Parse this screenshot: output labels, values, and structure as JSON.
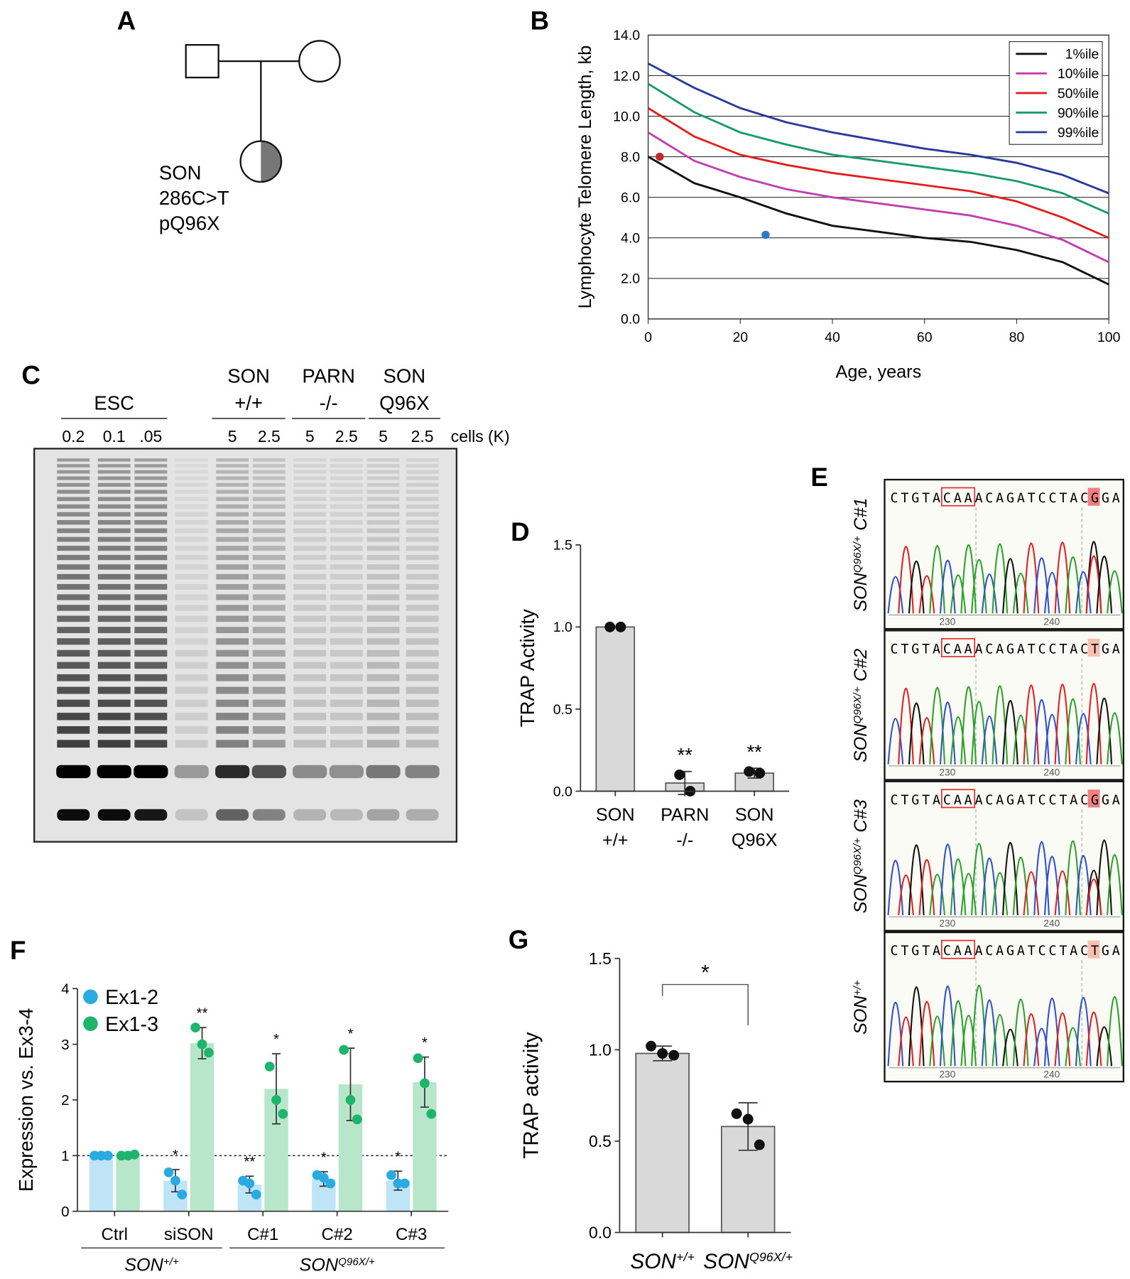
{
  "pedigree": {
    "panel": "A",
    "lines": [
      "SON",
      "286C>T",
      "pQ96X"
    ]
  },
  "gel": {
    "panel": "C",
    "groups": [
      [
        "ESC"
      ],
      [
        "SON",
        "+/+"
      ],
      [
        "PARN",
        "-/-"
      ],
      [
        "SON",
        "Q96X"
      ]
    ],
    "lanes": [
      "0.2",
      "0.1",
      ".05",
      "5",
      "2.5",
      "5",
      "2.5",
      "5",
      "2.5"
    ],
    "units": "cells (K)"
  },
  "sequencing": {
    "panel": "E",
    "positions": [
      "230",
      "240"
    ],
    "traces": [
      {
        "sequence": "CTGTACAAACAGATCCTACGGA",
        "label": {
          "text": "SON",
          "sup": "Q96X/+",
          "suffix": "C#1"
        }
      },
      {
        "sequence": "CTGTACAAACAGATCCTACTGA",
        "label": {
          "text": "SON",
          "sup": "Q96X/+",
          "suffix": "C#2"
        }
      },
      {
        "sequence": "CTGTACAAACAGATCCTACGGA",
        "label": {
          "text": "SON",
          "sup": "Q96X/+",
          "suffix": "C#3"
        }
      },
      {
        "sequence": "CTGTACAAACAGATCCTACTGA",
        "label": {
          "text": "SON",
          "sup": "+/+"
        }
      }
    ]
  },
  "chart_data": [
    {
      "panel": "B",
      "type": "line",
      "ylabel": "Lymphocyte Telomere Length, kb",
      "xlabel": "Age, years",
      "x": [
        0,
        10,
        20,
        30,
        40,
        50,
        60,
        70,
        80,
        90,
        100
      ],
      "series": [
        {
          "name": "1%ile",
          "color": "#111111",
          "values": [
            8.0,
            6.7,
            6.0,
            5.2,
            4.6,
            4.3,
            4.0,
            3.8,
            3.4,
            2.8,
            1.7
          ]
        },
        {
          "name": "10%ile",
          "color": "#c040b0",
          "values": [
            9.2,
            7.8,
            7.0,
            6.4,
            6.0,
            5.7,
            5.4,
            5.1,
            4.6,
            3.9,
            2.8
          ]
        },
        {
          "name": "50%ile",
          "color": "#e02020",
          "values": [
            10.4,
            9.0,
            8.1,
            7.6,
            7.2,
            6.9,
            6.6,
            6.3,
            5.8,
            5.0,
            4.0
          ]
        },
        {
          "name": "90%ile",
          "color": "#1a9a6a",
          "values": [
            11.6,
            10.2,
            9.2,
            8.6,
            8.1,
            7.8,
            7.5,
            7.2,
            6.8,
            6.2,
            5.2
          ]
        },
        {
          "name": "99%ile",
          "color": "#2a3a9a",
          "values": [
            12.6,
            11.4,
            10.4,
            9.7,
            9.2,
            8.8,
            8.4,
            8.1,
            7.7,
            7.1,
            6.2
          ]
        }
      ],
      "points": [
        {
          "x": 2.5,
          "y": 8.0,
          "color": "#c0282a"
        },
        {
          "x": 25.5,
          "y": 4.15,
          "color": "#2a7ac8"
        }
      ],
      "xlim": [
        0,
        100
      ],
      "xticks": [
        0,
        20,
        40,
        60,
        80,
        100
      ],
      "ylim": [
        0,
        14
      ],
      "yticks": [
        {
          "value": 0,
          "label": "0.0"
        },
        {
          "value": 2,
          "label": "2.0"
        },
        {
          "value": 4,
          "label": "4.0"
        },
        {
          "value": 6,
          "label": "6.0"
        },
        {
          "value": 8,
          "label": "8.0"
        },
        {
          "value": 10,
          "label": "10.0"
        },
        {
          "value": 12,
          "label": "12.0"
        },
        {
          "value": 14,
          "label": "14.0"
        }
      ],
      "grid": true,
      "legend": "upper-right"
    },
    {
      "panel": "D",
      "type": "bar",
      "ylabel": "TRAP Activity",
      "categories": [
        [
          "SON",
          "+/+"
        ],
        [
          "PARN",
          "-/-"
        ],
        [
          "SON",
          "Q96X"
        ]
      ],
      "values": [
        1.0,
        0.05,
        0.11
      ],
      "errors": [
        null,
        0.07,
        0.03
      ],
      "points": [
        [
          1.0,
          1.0
        ],
        [
          0.1,
          0.0
        ],
        [
          0.12,
          0.11
        ]
      ],
      "annotations": [
        null,
        "**",
        "**"
      ],
      "color": "#d9d9d9",
      "ylim": [
        0,
        1.5
      ],
      "yticks": [
        {
          "value": 0,
          "label": "0.0"
        },
        {
          "value": 0.5,
          "label": "0.5"
        },
        {
          "value": 1,
          "label": "1.0"
        },
        {
          "value": 1.5,
          "label": "1.5"
        }
      ]
    },
    {
      "panel": "F",
      "type": "bar",
      "ylabel": "Expression vs. Ex3-4",
      "categories": [
        "Ctrl",
        "siSON",
        "C#1",
        "C#2",
        "C#3"
      ],
      "groups": [
        {
          "text": "SON",
          "sup": "+/+"
        },
        {
          "text": "SON",
          "sup": "Q96X/+"
        }
      ],
      "series": [
        {
          "name": "Ex1-2",
          "color": "#bfe4f6",
          "point_color": "#29abe2",
          "values": [
            1.0,
            0.55,
            0.48,
            0.58,
            0.55
          ],
          "errors": [
            null,
            0.2,
            0.15,
            0.13,
            0.17
          ],
          "points": [
            [
              1.0,
              1.0,
              1.0
            ],
            [
              0.7,
              0.55,
              0.3
            ],
            [
              0.55,
              0.5,
              0.3
            ],
            [
              0.65,
              0.6,
              0.5
            ],
            [
              0.65,
              0.5,
              0.5
            ]
          ],
          "annotations": [
            null,
            "*",
            "**",
            "*",
            "*"
          ]
        },
        {
          "name": "Ex1-3",
          "color": "#b8e6cb",
          "point_color": "#1db46b",
          "values": [
            1.02,
            3.02,
            2.2,
            2.28,
            2.32
          ],
          "errors": [
            null,
            0.28,
            0.63,
            0.65,
            0.45
          ],
          "points": [
            [
              1.0,
              1.0,
              1.02
            ],
            [
              3.3,
              3.0,
              2.85
            ],
            [
              2.6,
              2.0,
              1.75
            ],
            [
              2.9,
              2.0,
              1.65
            ],
            [
              2.75,
              2.3,
              1.75
            ]
          ],
          "annotations": [
            null,
            "**",
            "*",
            "*",
            "*"
          ]
        }
      ],
      "reference_line": 1,
      "ylim": [
        0,
        4
      ],
      "yticks": [
        0,
        1,
        2,
        3,
        4
      ],
      "legend": "upper-left"
    },
    {
      "panel": "G",
      "type": "bar",
      "ylabel": "TRAP activity",
      "categories": [
        {
          "text": "SON",
          "sup": "+/+"
        },
        {
          "text": "SON",
          "sup": "Q96X/+"
        }
      ],
      "values": [
        0.98,
        0.58
      ],
      "errors": [
        0.04,
        0.13
      ],
      "points": [
        [
          1.02,
          0.98,
          0.97
        ],
        [
          0.65,
          0.62,
          0.48
        ]
      ],
      "significance": "*",
      "color": "#d9d9d9",
      "ylim": [
        0,
        1.5
      ],
      "yticks": [
        {
          "value": 0,
          "label": "0.0"
        },
        {
          "value": 0.5,
          "label": "0.5"
        },
        {
          "value": 1,
          "label": "1.0"
        },
        {
          "value": 1.5,
          "label": "1.5"
        }
      ]
    }
  ]
}
